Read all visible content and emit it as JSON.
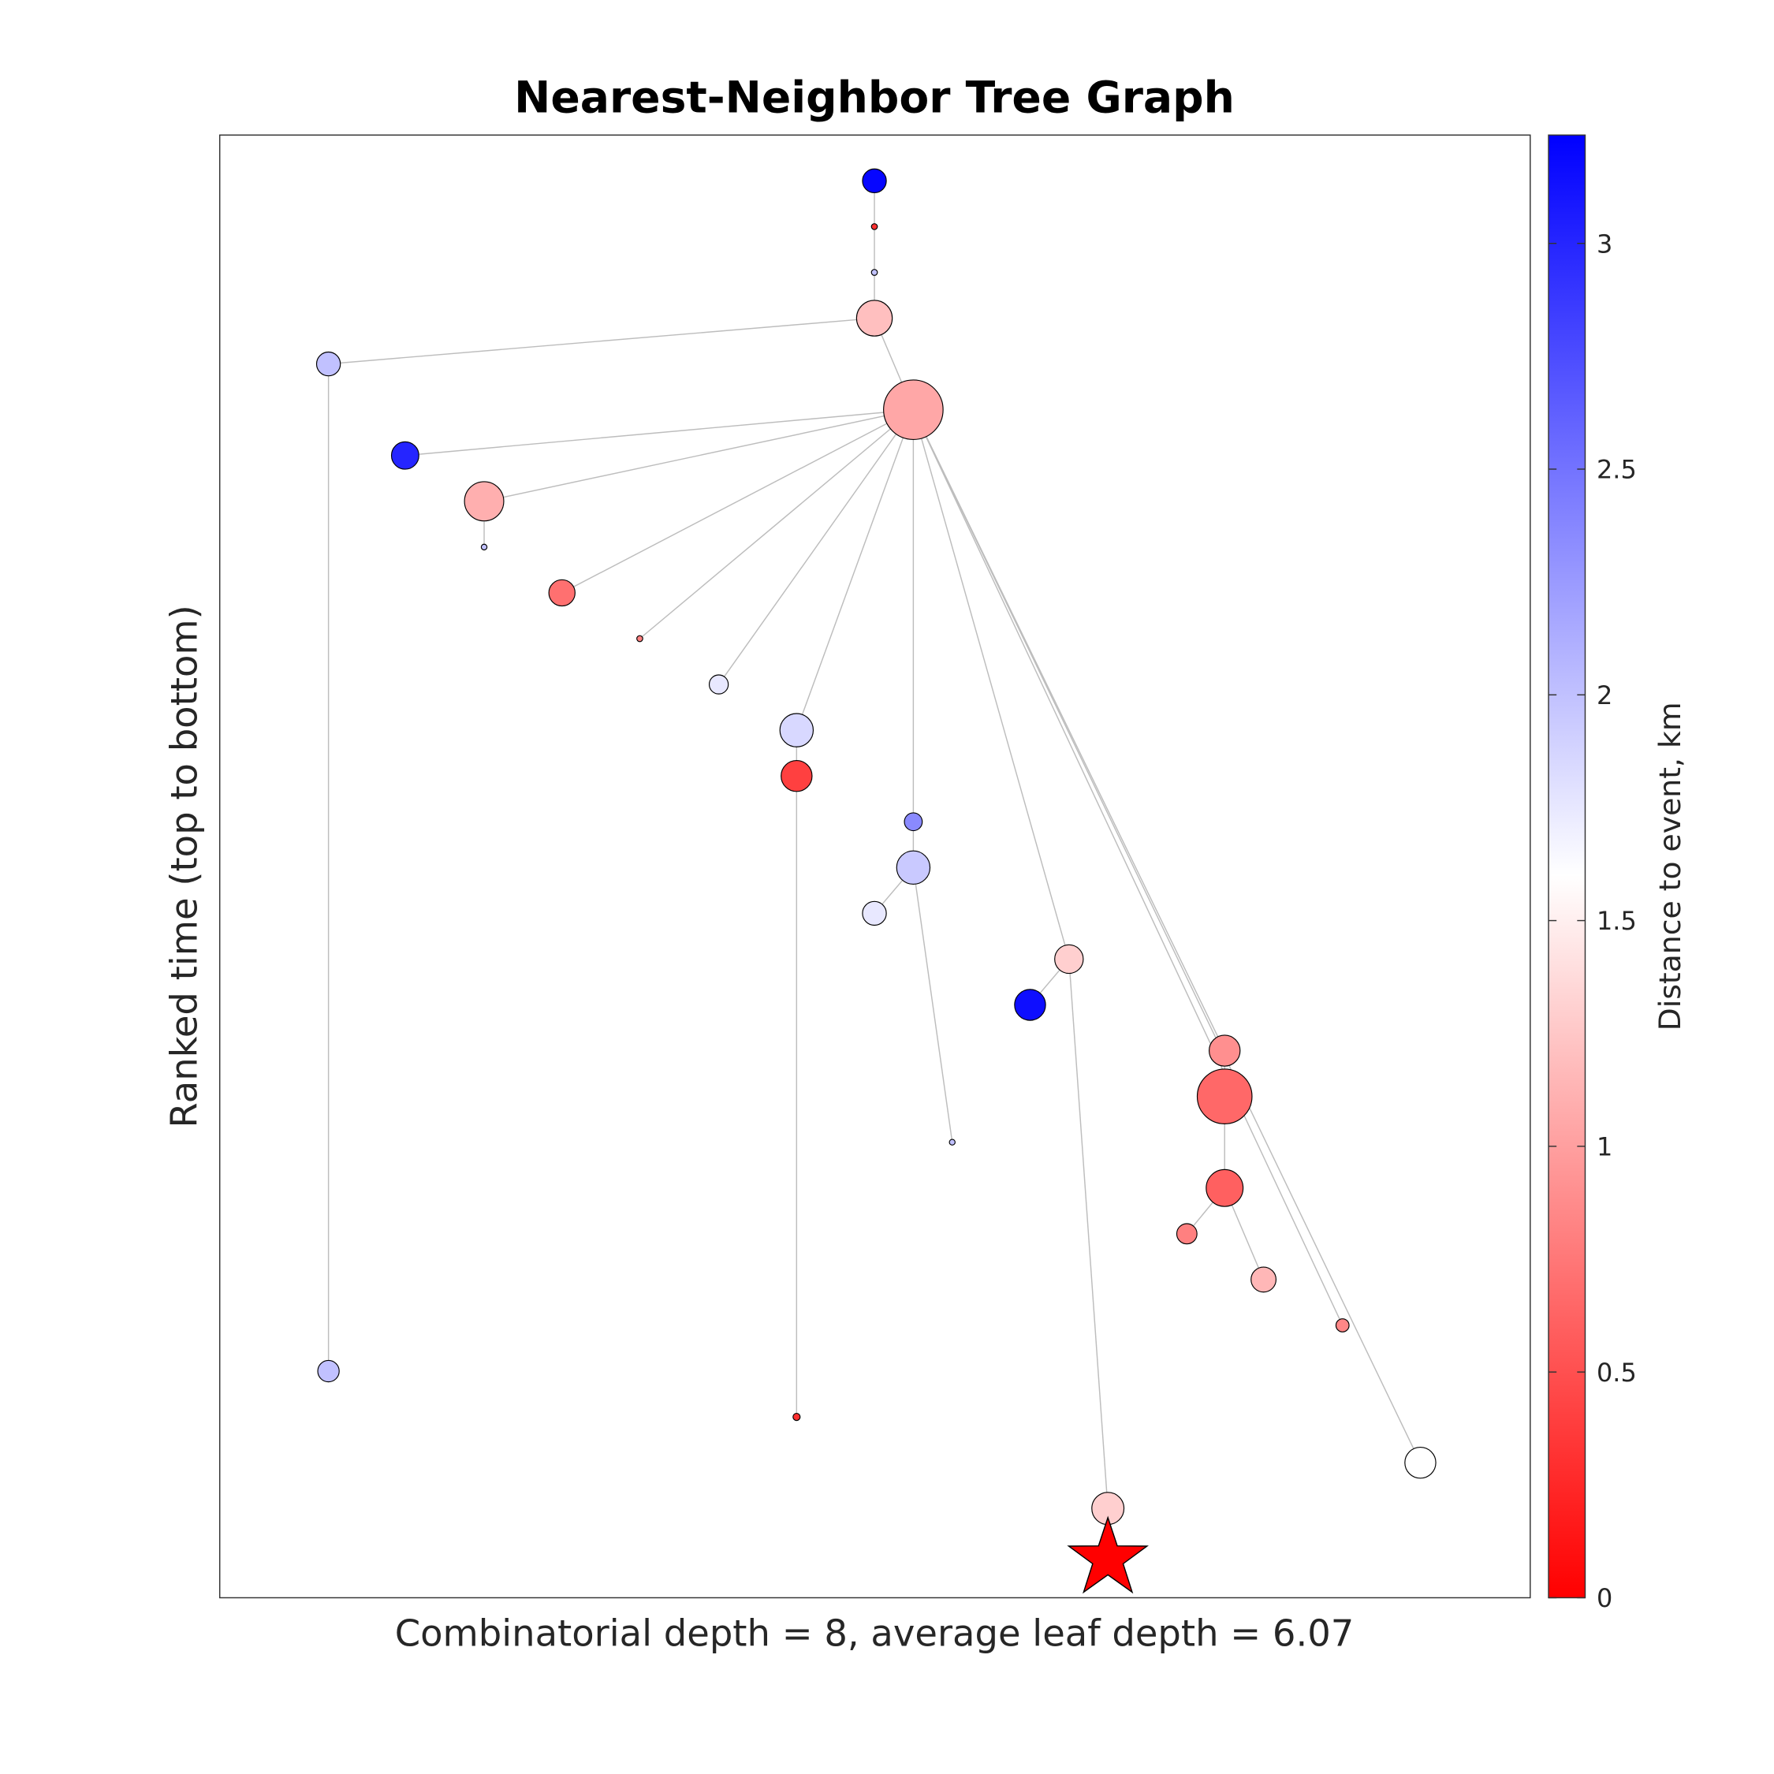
{
  "chart_data": {
    "type": "scatter",
    "title": "Nearest-Neighbor Tree Graph",
    "xlabel": "Combinatorial depth = 8, average leaf depth = 6.07",
    "ylabel": "Ranked time (top to bottom)",
    "colorbar": {
      "label": "Distance to event, km",
      "range": [
        0,
        3.24
      ],
      "ticks": [
        0,
        0.5,
        1,
        1.5,
        2,
        2.5,
        3
      ],
      "tick_labels": [
        "0",
        "0.5",
        "1",
        "1.5",
        "2",
        "2.5",
        "3"
      ],
      "colormap": [
        "#ff0000",
        "#ffffff",
        "#0000ff"
      ]
    },
    "nodes": [
      {
        "rank": 1,
        "parent": null,
        "distance_km": 3.2,
        "size": 2
      },
      {
        "rank": 2,
        "parent": 1,
        "distance_km": 0.3,
        "size": 0.5
      },
      {
        "rank": 3,
        "parent": 2,
        "distance_km": 2.0,
        "size": 0.5
      },
      {
        "rank": 4,
        "parent": 3,
        "distance_km": 1.2,
        "size": 3
      },
      {
        "rank": 5,
        "parent": 4,
        "distance_km": 2.0,
        "size": 2
      },
      {
        "rank": 6,
        "parent": 4,
        "distance_km": 1.05,
        "size": 5
      },
      {
        "rank": 7,
        "parent": 6,
        "distance_km": 3.0,
        "size": 2.3
      },
      {
        "rank": 8,
        "parent": 6,
        "distance_km": 1.1,
        "size": 3.3
      },
      {
        "rank": 9,
        "parent": 8,
        "distance_km": 2.0,
        "size": 0.4
      },
      {
        "rank": 10,
        "parent": 6,
        "distance_km": 0.7,
        "size": 2.2
      },
      {
        "rank": 11,
        "parent": 6,
        "distance_km": 0.8,
        "size": 0.5
      },
      {
        "rank": 12,
        "parent": 6,
        "distance_km": 1.75,
        "size": 1.6
      },
      {
        "rank": 13,
        "parent": 6,
        "distance_km": 1.85,
        "size": 2.8
      },
      {
        "rank": 14,
        "parent": 13,
        "distance_km": 0.4,
        "size": 2.6
      },
      {
        "rank": 15,
        "parent": 6,
        "distance_km": 2.35,
        "size": 1.5
      },
      {
        "rank": 16,
        "parent": 15,
        "distance_km": 1.95,
        "size": 2.8
      },
      {
        "rank": 17,
        "parent": 16,
        "distance_km": 1.75,
        "size": 2
      },
      {
        "rank": 18,
        "parent": 6,
        "distance_km": 1.3,
        "size": 2.4
      },
      {
        "rank": 19,
        "parent": 18,
        "distance_km": 3.15,
        "size": 2.6
      },
      {
        "rank": 20,
        "parent": 6,
        "distance_km": 0.9,
        "size": 2.6
      },
      {
        "rank": 21,
        "parent": 20,
        "distance_km": 0.65,
        "size": 4.6
      },
      {
        "rank": 22,
        "parent": 16,
        "distance_km": 2.0,
        "size": 0.4
      },
      {
        "rank": 23,
        "parent": 21,
        "distance_km": 0.6,
        "size": 3.1
      },
      {
        "rank": 24,
        "parent": 23,
        "distance_km": 0.8,
        "size": 1.7
      },
      {
        "rank": 25,
        "parent": 23,
        "distance_km": 1.15,
        "size": 2.1
      },
      {
        "rank": 26,
        "parent": 6,
        "distance_km": 0.85,
        "size": 1.1
      },
      {
        "rank": 27,
        "parent": 5,
        "distance_km": 2.0,
        "size": 1.8
      },
      {
        "rank": 28,
        "parent": 14,
        "distance_km": 0.3,
        "size": 0.6
      },
      {
        "rank": 29,
        "parent": 6,
        "distance_km": 1.6,
        "size": 2.6
      },
      {
        "rank": 30,
        "parent": 18,
        "distance_km": 1.3,
        "size": 2.7
      },
      {
        "rank": 31,
        "parent": 30,
        "distance_km": 0,
        "size": 0,
        "marker": "star"
      }
    ]
  }
}
